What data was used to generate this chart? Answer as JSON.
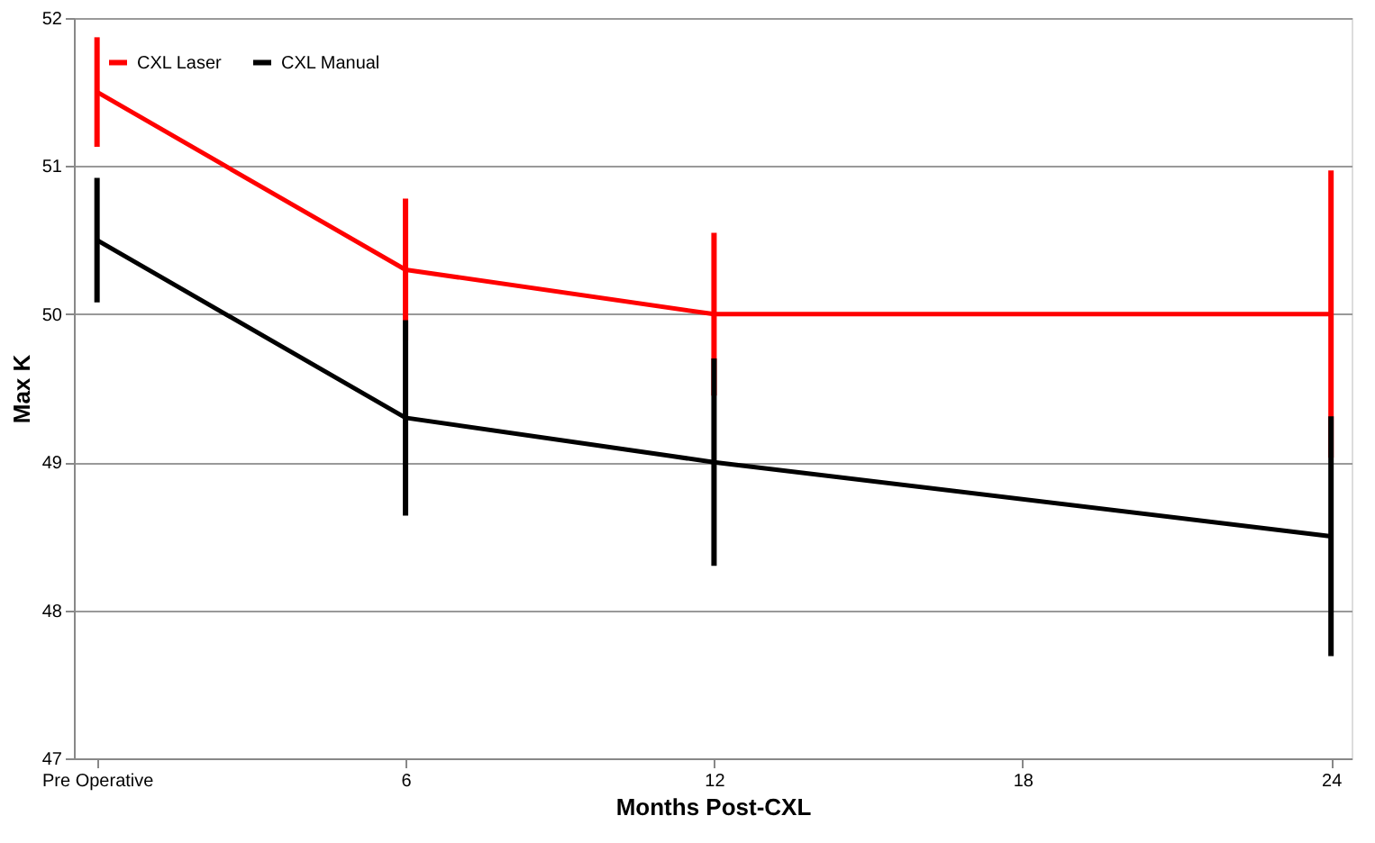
{
  "chart_data": {
    "type": "line",
    "xlabel": "Months Post-CXL",
    "ylabel": "Max K",
    "x": [
      0,
      6,
      12,
      24
    ],
    "series": [
      {
        "name": "CXL Laser",
        "color": "#ff0000",
        "values": [
          51.5,
          50.3,
          50.0,
          50.0
        ],
        "errors": [
          0.37,
          0.48,
          0.55,
          0.97
        ]
      },
      {
        "name": "CXL Manual",
        "color": "#000000",
        "values": [
          50.5,
          49.3,
          49.0,
          48.5
        ],
        "errors": [
          0.42,
          0.66,
          0.7,
          0.81
        ]
      }
    ],
    "xlim": [
      -0.45,
      24.4
    ],
    "xticks": [
      {
        "value": 0,
        "label": "Pre Operative"
      },
      6,
      12,
      18,
      24
    ],
    "ylim": [
      47,
      52
    ],
    "yticks": [
      47,
      48,
      49,
      50,
      51,
      52
    ],
    "grid": "y",
    "legend": "top left",
    "marker": "none",
    "line_style": "solid"
  }
}
